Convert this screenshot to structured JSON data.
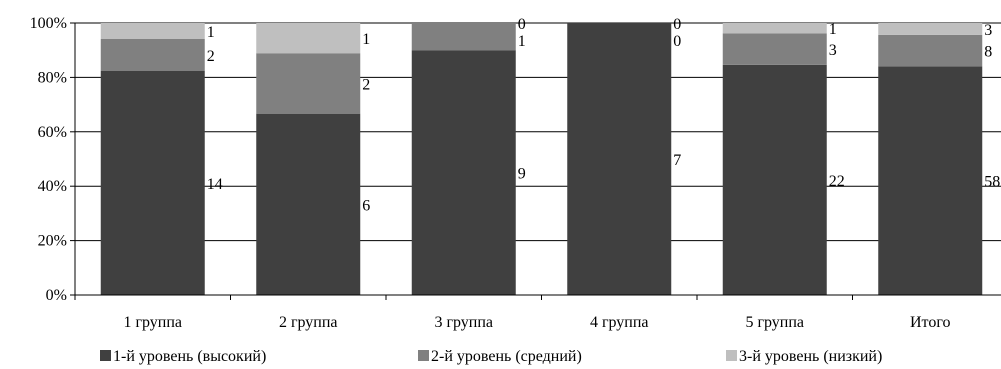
{
  "chart_data": {
    "type": "bar",
    "stacked": true,
    "normalized": true,
    "categories": [
      "1 группа",
      "2 группа",
      "3 группа",
      "4 группа",
      "5 группа",
      "Итого"
    ],
    "series": [
      {
        "name": "1-й уровень (высокий)",
        "values": [
          14,
          6,
          9,
          7,
          22,
          58
        ],
        "color": "#404040"
      },
      {
        "name": "2-й уровень (средний)",
        "values": [
          2,
          2,
          1,
          0,
          3,
          8
        ],
        "color": "#808080"
      },
      {
        "name": "3-й уровень (низкий)",
        "values": [
          1,
          1,
          0,
          0,
          1,
          3
        ],
        "color": "#bfbfbf"
      }
    ],
    "yticks": [
      "0%",
      "20%",
      "40%",
      "60%",
      "80%",
      "100%"
    ],
    "ylim": [
      0,
      100
    ],
    "grid": true,
    "legend_position": "bottom"
  }
}
